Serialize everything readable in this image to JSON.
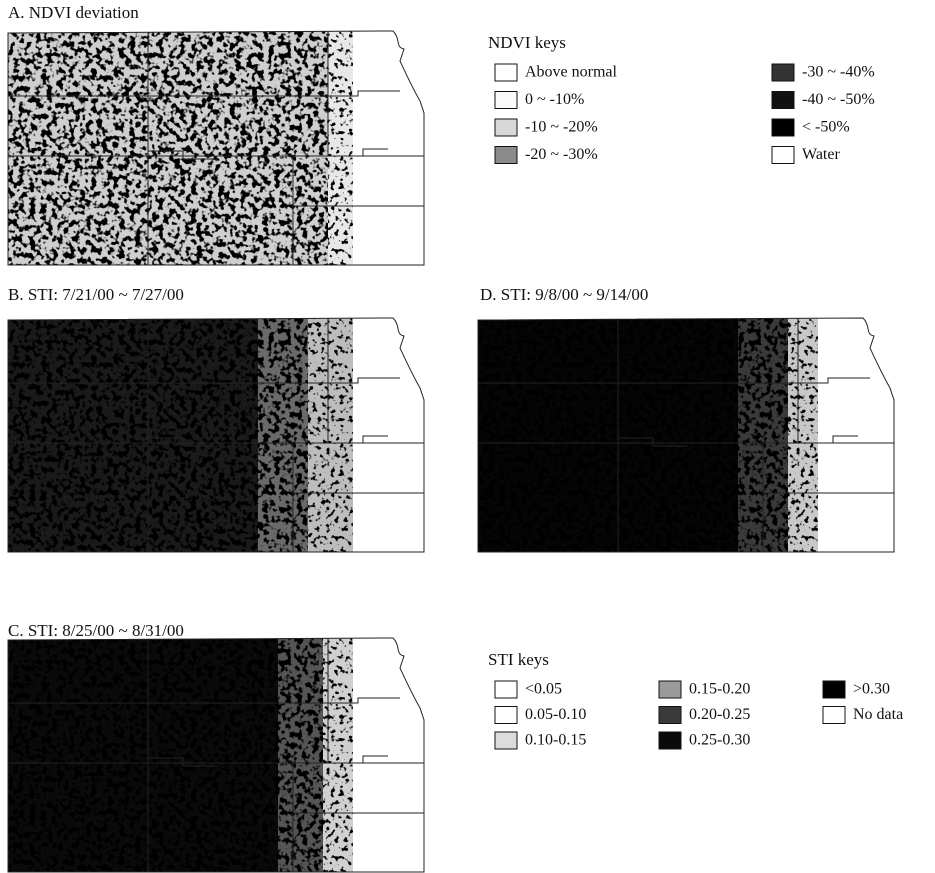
{
  "panels": [
    {
      "label": "A. NDVI deviation"
    },
    {
      "label": "B. STI: 7/21/00 ~ 7/27/00"
    },
    {
      "label": "D. STI: 9/8/00 ~ 9/14/00"
    },
    {
      "label": "C. STI: 8/25/00 ~ 8/31/00"
    }
  ],
  "ndvi_legend": {
    "title": "NDVI keys",
    "items": [
      {
        "label": "Above normal",
        "color": "#ffffff"
      },
      {
        "label": "0 ~ -10%",
        "color": "#fafafa"
      },
      {
        "label": "-10 ~ -20%",
        "color": "#d8d8d8"
      },
      {
        "label": "-20 ~ -30%",
        "color": "#8a8a8a"
      },
      {
        "label": "-30 ~ -40%",
        "color": "#333333"
      },
      {
        "label": "-40 ~ -50%",
        "color": "#111111"
      },
      {
        "label": "< -50%",
        "color": "#000000"
      },
      {
        "label": "Water",
        "color": "#ffffff"
      }
    ]
  },
  "sti_legend": {
    "title": "STI keys",
    "items": [
      {
        "label": "<0.05",
        "color": "#ffffff"
      },
      {
        "label": "0.05-0.10",
        "color": "#ffffff"
      },
      {
        "label": "0.10-0.15",
        "color": "#dcdcdc"
      },
      {
        "label": "0.15-0.20",
        "color": "#9a9a9a"
      },
      {
        "label": "0.20-0.25",
        "color": "#3a3a3a"
      },
      {
        "label": "0.25-0.30",
        "color": "#0a0a0a"
      },
      {
        "label": ">0.30",
        "color": "#000000"
      },
      {
        "label": "No data",
        "color": "#ffffff"
      }
    ]
  }
}
